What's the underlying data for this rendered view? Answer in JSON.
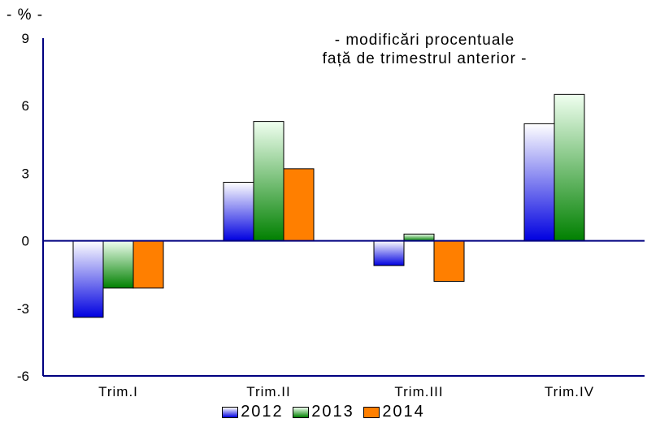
{
  "chart_data": {
    "type": "bar",
    "unit_label": "- % -",
    "subtitle_lines": [
      "- modificări procentuale",
      "față de trimestrul anterior -"
    ],
    "categories": [
      "Trim.I",
      "Trim.II",
      "Trim.III",
      "Trim.IV"
    ],
    "series": [
      {
        "name": "2012",
        "values": [
          -3.4,
          2.6,
          -1.1,
          5.2
        ],
        "color": "#0000e0",
        "color_light": "#ffffff"
      },
      {
        "name": "2013",
        "values": [
          -2.1,
          5.3,
          0.3,
          6.5
        ],
        "color": "#008000",
        "color_light": "#f0fff0"
      },
      {
        "name": "2014",
        "values": [
          -2.1,
          3.2,
          -1.8,
          null
        ],
        "color": "#ff7f00",
        "color_light": "#ff7f00"
      }
    ],
    "ylim": [
      -6,
      9
    ],
    "yticks": [
      9,
      6,
      3,
      0,
      -3,
      -6
    ],
    "grid": false,
    "legend_position": "bottom"
  }
}
